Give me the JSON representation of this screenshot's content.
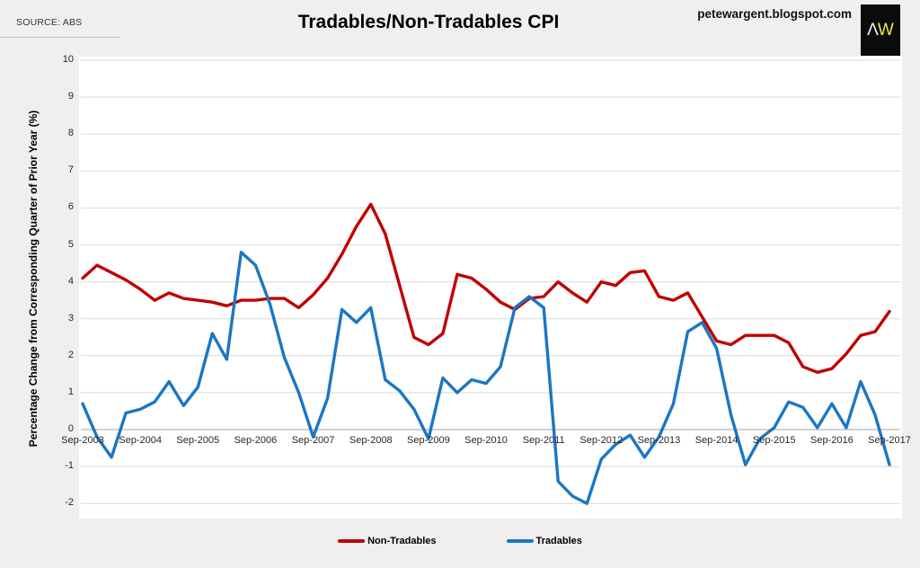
{
  "header": {
    "source_note": "SOURCE: ABS",
    "title": "Tradables/Non-Tradables CPI",
    "site": "petewargent.blogspot.com",
    "logo": {
      "char_left": "Λ",
      "char_right": "W",
      "bg": "#0b0b0b",
      "left_color": "#f0f0f0",
      "right_color": "#ece73d"
    }
  },
  "chart_data": {
    "type": "line",
    "title": "Tradables/Non-Tradables CPI",
    "xlabel": "",
    "ylabel": "Percentage Change from Corresponding Quarter of Prior Year (%)",
    "ylim": [
      -2,
      10
    ],
    "grid": true,
    "legend_position": "bottom",
    "y_ticks": [
      10,
      9,
      8,
      7,
      6,
      5,
      4,
      3,
      2,
      1,
      0,
      -1,
      -2
    ],
    "x_tick_labels": [
      "Sep-2003",
      "Sep-2004",
      "Sep-2005",
      "Sep-2006",
      "Sep-2007",
      "Sep-2008",
      "Sep-2009",
      "Sep-2010",
      "Sep-2011",
      "Sep-2012",
      "Sep-2013",
      "Sep-2014",
      "Sep-2015",
      "Sep-2016",
      "Sep-2017"
    ],
    "categories": [
      "Sep-2003",
      "Dec-2003",
      "Mar-2004",
      "Jun-2004",
      "Sep-2004",
      "Dec-2004",
      "Mar-2005",
      "Jun-2005",
      "Sep-2005",
      "Dec-2005",
      "Mar-2006",
      "Jun-2006",
      "Sep-2006",
      "Dec-2006",
      "Mar-2007",
      "Jun-2007",
      "Sep-2007",
      "Dec-2007",
      "Mar-2008",
      "Jun-2008",
      "Sep-2008",
      "Dec-2008",
      "Mar-2009",
      "Jun-2009",
      "Sep-2009",
      "Dec-2009",
      "Mar-2010",
      "Jun-2010",
      "Sep-2010",
      "Dec-2010",
      "Mar-2011",
      "Jun-2011",
      "Sep-2011",
      "Dec-2011",
      "Mar-2012",
      "Jun-2012",
      "Sep-2012",
      "Dec-2012",
      "Mar-2013",
      "Jun-2013",
      "Sep-2013",
      "Dec-2013",
      "Mar-2014",
      "Jun-2014",
      "Sep-2014",
      "Dec-2014",
      "Mar-2015",
      "Jun-2015",
      "Sep-2015",
      "Dec-2015",
      "Mar-2016",
      "Jun-2016",
      "Sep-2016",
      "Dec-2016",
      "Mar-2017",
      "Jun-2017",
      "Sep-2017"
    ],
    "series": [
      {
        "name": "Non-Tradables",
        "color": "#c00000",
        "values": [
          4.1,
          4.45,
          4.25,
          4.05,
          3.8,
          3.5,
          3.7,
          3.55,
          3.5,
          3.45,
          3.35,
          3.5,
          3.5,
          3.55,
          3.55,
          3.3,
          3.65,
          4.1,
          4.75,
          5.5,
          6.1,
          5.3,
          3.9,
          2.5,
          2.3,
          2.6,
          4.2,
          4.1,
          3.8,
          3.45,
          3.25,
          3.55,
          3.6,
          4.0,
          3.7,
          3.45,
          4.0,
          3.9,
          4.25,
          4.3,
          3.6,
          3.5,
          3.7,
          3.05,
          2.4,
          2.3,
          2.55,
          2.55,
          2.55,
          2.35,
          1.7,
          1.55,
          1.65,
          2.05,
          2.55,
          2.65,
          3.2
        ]
      },
      {
        "name": "Tradables",
        "color": "#1b76c4",
        "values": [
          0.7,
          -0.2,
          -0.75,
          0.45,
          0.55,
          0.75,
          1.3,
          0.65,
          1.15,
          2.6,
          1.9,
          4.8,
          4.45,
          3.4,
          1.95,
          1.0,
          -0.2,
          0.85,
          3.25,
          2.9,
          3.3,
          1.35,
          1.05,
          0.55,
          -0.25,
          1.4,
          1.0,
          1.35,
          1.25,
          1.7,
          3.3,
          3.6,
          3.3,
          -1.4,
          -1.8,
          -2.0,
          -0.8,
          -0.4,
          -0.15,
          -0.75,
          -0.2,
          0.7,
          2.65,
          2.9,
          2.2,
          0.4,
          -0.95,
          -0.25,
          0.05,
          0.75,
          0.6,
          0.05,
          0.7,
          0.05,
          1.3,
          0.4,
          -0.95
        ]
      }
    ],
    "colors": {
      "grid": "#d9d9d9",
      "zero_line": "#a6a6a6",
      "plot_bg": "#ffffff",
      "page_bg": "#efefef"
    }
  }
}
